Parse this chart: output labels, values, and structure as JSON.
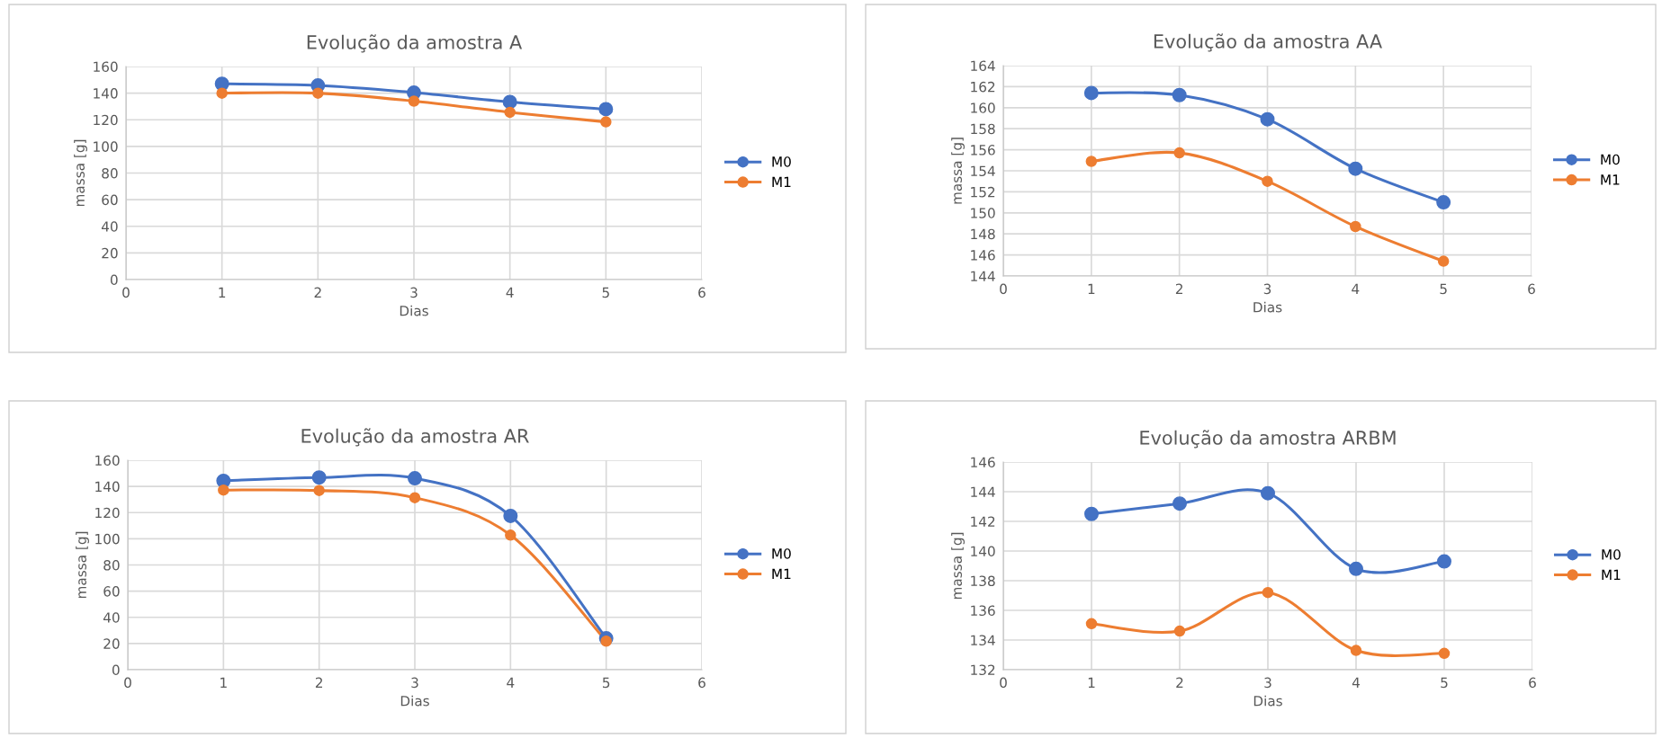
{
  "chart_data": [
    {
      "type": "line",
      "title": "Evolução da amostra A",
      "xlabel": "Dias",
      "ylabel": "massa [g]",
      "x": [
        1,
        2,
        3,
        4,
        5
      ],
      "xlim": [
        0,
        6
      ],
      "xticks": [
        0,
        1,
        2,
        3,
        4,
        5,
        6
      ],
      "ylim": [
        0,
        160
      ],
      "yticks": [
        0,
        20,
        40,
        60,
        80,
        100,
        120,
        140,
        160
      ],
      "grid": true,
      "legend": "right",
      "marker": "circle",
      "line_style": "solid",
      "series": [
        {
          "name": "M0",
          "color": "#4472c4",
          "values": [
            147,
            145.8,
            140.4,
            133.4,
            128
          ]
        },
        {
          "name": "M1",
          "color": "#ed7d31",
          "values": [
            140,
            140,
            134,
            125.6,
            118.4
          ]
        }
      ]
    },
    {
      "type": "line",
      "title": "Evolução da amostra AA",
      "xlabel": "Dias",
      "ylabel": "massa [g]",
      "x": [
        1,
        2,
        3,
        4,
        5
      ],
      "xlim": [
        0,
        6
      ],
      "xticks": [
        0,
        1,
        2,
        3,
        4,
        5,
        6
      ],
      "ylim": [
        144,
        164
      ],
      "yticks": [
        144,
        146,
        148,
        150,
        152,
        154,
        156,
        158,
        160,
        162,
        164
      ],
      "grid": true,
      "legend": "right",
      "marker": "circle",
      "line_style": "solid",
      "series": [
        {
          "name": "M0",
          "color": "#4472c4",
          "values": [
            161.4,
            161.2,
            158.9,
            154.2,
            151.0
          ]
        },
        {
          "name": "M1",
          "color": "#ed7d31",
          "values": [
            154.9,
            155.7,
            153.0,
            148.7,
            145.4
          ]
        }
      ]
    },
    {
      "type": "line",
      "title": "Evolução da amostra AR",
      "xlabel": "Dias",
      "ylabel": "massa [g]",
      "x": [
        1,
        2,
        3,
        4,
        5
      ],
      "xlim": [
        0,
        6
      ],
      "xticks": [
        0,
        1,
        2,
        3,
        4,
        5,
        6
      ],
      "ylim": [
        0,
        160
      ],
      "yticks": [
        0,
        20,
        40,
        60,
        80,
        100,
        120,
        140,
        160
      ],
      "grid": true,
      "legend": "right",
      "marker": "circle",
      "line_style": "solid",
      "series": [
        {
          "name": "M0",
          "color": "#4472c4",
          "values": [
            144.3,
            146.8,
            146.2,
            117.5,
            24
          ]
        },
        {
          "name": "M1",
          "color": "#ed7d31",
          "values": [
            137.2,
            136.9,
            131.4,
            102.8,
            21.8
          ]
        }
      ]
    },
    {
      "type": "line",
      "title": "Evolução da amostra ARBM",
      "xlabel": "Dias",
      "ylabel": "massa [g]",
      "x": [
        1,
        2,
        3,
        4,
        5
      ],
      "xlim": [
        0,
        6
      ],
      "xticks": [
        0,
        1,
        2,
        3,
        4,
        5,
        6
      ],
      "ylim": [
        132,
        146
      ],
      "yticks": [
        132,
        134,
        136,
        138,
        140,
        142,
        144,
        146
      ],
      "grid": true,
      "legend": "right",
      "marker": "circle",
      "line_style": "solid",
      "series": [
        {
          "name": "M0",
          "color": "#4472c4",
          "values": [
            142.5,
            143.2,
            143.9,
            138.8,
            139.3
          ]
        },
        {
          "name": "M1",
          "color": "#ed7d31",
          "values": [
            135.1,
            134.6,
            137.2,
            133.3,
            133.1
          ]
        }
      ]
    }
  ]
}
